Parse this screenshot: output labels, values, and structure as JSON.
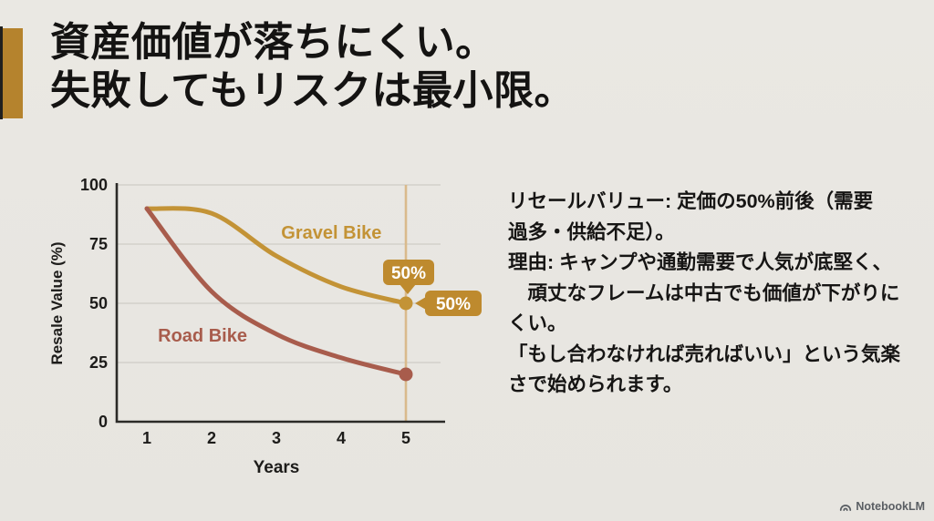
{
  "slide": {
    "title_lines": [
      "資産価値が落ちにくい。",
      "失敗してもリスクは最小限。"
    ],
    "body_text": "リセールバリュー: 定価の50%前後（需要\n過多・供給不足）。\n理由: キャンプや通勤需要で人気が底堅く、\n　頑丈なフレームは中古でも価値が下がりに\nくい。\n「もし合わなければ売ればいい」という気楽\nさで始められます。",
    "accent_color": "#B5832D",
    "background_color": "#E9E7E2",
    "footer": {
      "brand": "NotebookLM",
      "icon": "notebooklm-logo",
      "color": "#5A5E63"
    }
  },
  "chart_data": {
    "type": "line",
    "x": [
      1,
      2,
      3,
      4,
      5
    ],
    "xlabel": "Years",
    "ylabel": "Resale Value (%)",
    "yticks": [
      0,
      25,
      50,
      75,
      100
    ],
    "ylim": [
      0,
      100
    ],
    "xlim": [
      1,
      5
    ],
    "grid": true,
    "legend_position": "inline-labels",
    "axis_color": "#2B2A27",
    "grid_color": "#CFCCC5",
    "tick_color": "#1D1C1A",
    "series": [
      {
        "name": "Gravel Bike",
        "values": [
          90,
          88,
          70,
          57,
          50
        ],
        "color": "#C39336",
        "label_x": 3.85,
        "label_y": 80
      },
      {
        "name": "Road Bike",
        "values": [
          90,
          55,
          37,
          27,
          20
        ],
        "color": "#A85C4C",
        "label_x": 1.86,
        "label_y": 36.5
      }
    ],
    "annotations": {
      "vline_x": 5,
      "vline_color": "#D9BA8C",
      "end_dots": true,
      "callouts": [
        {
          "text": "50%",
          "direction": "down",
          "bg_color": "#BE8A2E",
          "text_color": "#FFFFFF"
        },
        {
          "text": "50%",
          "direction": "left",
          "bg_color": "#BE8A2E",
          "text_color": "#FFFFFF"
        }
      ]
    }
  }
}
